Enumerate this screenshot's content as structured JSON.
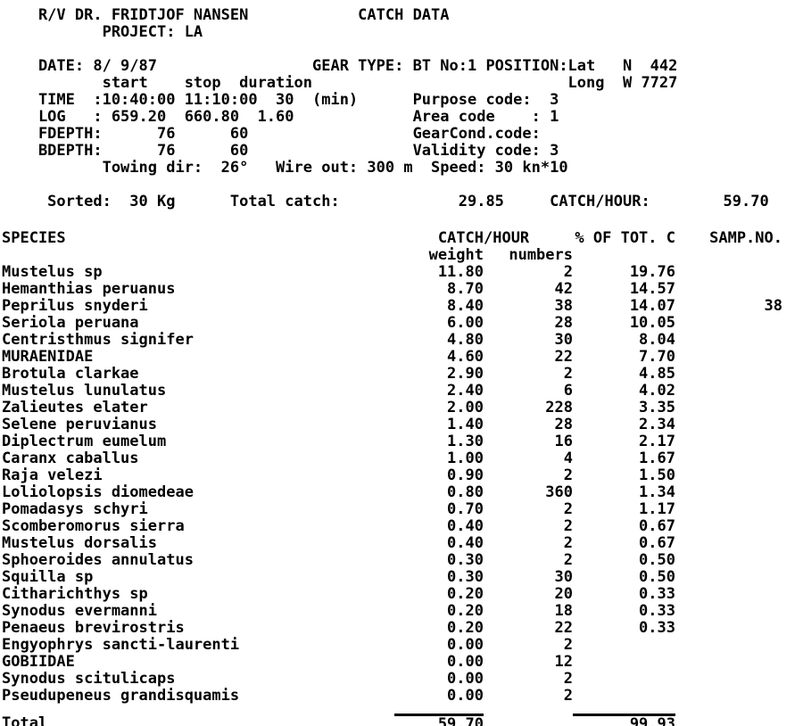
{
  "header": {
    "lines": [
      "    R/V DR. FRIDTJOF NANSEN            CATCH DATA",
      "           PROJECT: LA",
      "",
      "    DATE: 8/ 9/87                 GEAR TYPE: BT No:1 POSITION:Lat   N  442",
      "           start    stop  duration                            Long  W 7727",
      "    TIME  :10:40:00 11:10:00  30  (min)      Purpose code:  3",
      "    LOG   : 659.20  660.80  1.60             Area code    : 1",
      "    FDEPTH:      76      60                  GearCond.code:",
      "    BDEPTH:      76      60                  Validity code: 3",
      "           Towing dir:  26°   Wire out: 300 m  Speed: 30 kn*10",
      "",
      "     Sorted:  30 Kg      Total catch:             29.85     CATCH/HOUR:        59.70"
    ]
  },
  "fields": {
    "vessel": "R/V DR. FRIDTJOF NANSEN",
    "report_title": "CATCH DATA",
    "project": "LA",
    "date": "8/ 9/87",
    "gear_type": "BT No:1",
    "position_lat": "N 442",
    "position_long": "W 7727",
    "time_start": "10:40:00",
    "time_stop": "11:10:00",
    "duration_min": "30",
    "log_start": "659.20",
    "log_stop": "660.80",
    "log_duration": "1.60",
    "fdepth_start": "76",
    "fdepth_stop": "60",
    "bdepth_start": "76",
    "bdepth_stop": "60",
    "purpose_code": "3",
    "area_code": "1",
    "gearcond_code": "",
    "validity_code": "3",
    "towing_dir": "26°",
    "wire_out": "300 m",
    "speed": "30 kn*10",
    "sorted": "30 Kg",
    "total_catch": "29.85",
    "catch_per_hour": "59.70"
  },
  "table": {
    "headers": {
      "species": "SPECIES",
      "catch_hour": "CATCH/HOUR",
      "pct_of_tot": "% OF TOT. C",
      "samp_no": "SAMP.NO.",
      "weight": "weight",
      "numbers": "numbers"
    },
    "rows": [
      {
        "species": "Mustelus sp",
        "weight": "11.80",
        "numbers": "2",
        "pct": "19.76",
        "samp": ""
      },
      {
        "species": "Hemanthias peruanus",
        "weight": "8.70",
        "numbers": "42",
        "pct": "14.57",
        "samp": ""
      },
      {
        "species": "Peprilus snyderi",
        "weight": "8.40",
        "numbers": "38",
        "pct": "14.07",
        "samp": "38"
      },
      {
        "species": "Seriola peruana",
        "weight": "6.00",
        "numbers": "28",
        "pct": "10.05",
        "samp": ""
      },
      {
        "species": "Centristhmus signifer",
        "weight": "4.80",
        "numbers": "30",
        "pct": "8.04",
        "samp": ""
      },
      {
        "species": "MURAENIDAE",
        "weight": "4.60",
        "numbers": "22",
        "pct": "7.70",
        "samp": ""
      },
      {
        "species": "Brotula clarkae",
        "weight": "2.90",
        "numbers": "2",
        "pct": "4.85",
        "samp": ""
      },
      {
        "species": "Mustelus lunulatus",
        "weight": "2.40",
        "numbers": "6",
        "pct": "4.02",
        "samp": ""
      },
      {
        "species": "Zalieutes elater",
        "weight": "2.00",
        "numbers": "228",
        "pct": "3.35",
        "samp": ""
      },
      {
        "species": "Selene peruvianus",
        "weight": "1.40",
        "numbers": "28",
        "pct": "2.34",
        "samp": ""
      },
      {
        "species": "Diplectrum eumelum",
        "weight": "1.30",
        "numbers": "16",
        "pct": "2.17",
        "samp": ""
      },
      {
        "species": "Caranx caballus",
        "weight": "1.00",
        "numbers": "4",
        "pct": "1.67",
        "samp": ""
      },
      {
        "species": "Raja velezi",
        "weight": "0.90",
        "numbers": "2",
        "pct": "1.50",
        "samp": ""
      },
      {
        "species": "Loliolopsis diomedeae",
        "weight": "0.80",
        "numbers": "360",
        "pct": "1.34",
        "samp": ""
      },
      {
        "species": "Pomadasys schyri",
        "weight": "0.70",
        "numbers": "2",
        "pct": "1.17",
        "samp": ""
      },
      {
        "species": "Scomberomorus sierra",
        "weight": "0.40",
        "numbers": "2",
        "pct": "0.67",
        "samp": ""
      },
      {
        "species": "Mustelus dorsalis",
        "weight": "0.40",
        "numbers": "2",
        "pct": "0.67",
        "samp": ""
      },
      {
        "species": "Sphoeroides annulatus",
        "weight": "0.30",
        "numbers": "2",
        "pct": "0.50",
        "samp": ""
      },
      {
        "species": "Squilla sp",
        "weight": "0.30",
        "numbers": "30",
        "pct": "0.50",
        "samp": ""
      },
      {
        "species": "Citharichthys sp",
        "weight": "0.20",
        "numbers": "20",
        "pct": "0.33",
        "samp": ""
      },
      {
        "species": "Synodus evermanni",
        "weight": "0.20",
        "numbers": "18",
        "pct": "0.33",
        "samp": ""
      },
      {
        "species": "Penaeus brevirostris",
        "weight": "0.20",
        "numbers": "22",
        "pct": "0.33",
        "samp": ""
      },
      {
        "species": "Engyophrys sancti-laurenti",
        "weight": "0.00",
        "numbers": "2",
        "pct": "",
        "samp": ""
      },
      {
        "species": "GOBIIDAE",
        "weight": "0.00",
        "numbers": "12",
        "pct": "",
        "samp": ""
      },
      {
        "species": "Synodus scitulicaps",
        "weight": "0.00",
        "numbers": "2",
        "pct": "",
        "samp": ""
      },
      {
        "species": "Pseudupeneus grandisquamis",
        "weight": "0.00",
        "numbers": "2",
        "pct": "",
        "samp": ""
      }
    ],
    "total": {
      "label": "Total",
      "weight": "59.70",
      "pct": "99.93"
    }
  }
}
